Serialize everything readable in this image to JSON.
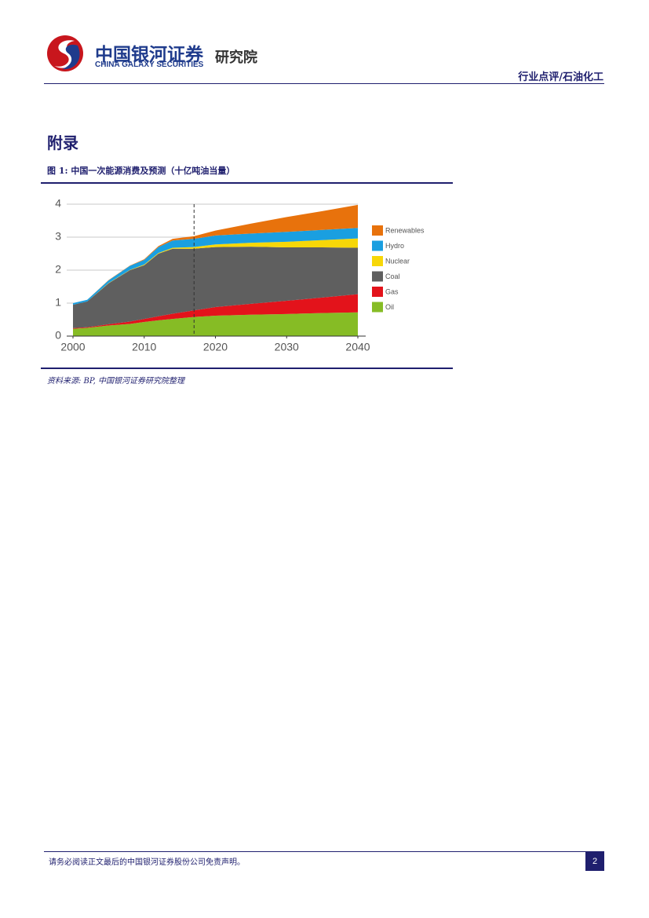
{
  "header": {
    "company_cn": "中国银河证券",
    "company_en": "CHINA GALAXY SECURITIES",
    "institute": "研究院",
    "category": "行业点评/石油化工"
  },
  "section_title": "附录",
  "figure_caption": "图 1: 中国一次能源消费及预测（十亿吨油当量）",
  "chart_data": {
    "type": "stacked_area",
    "x": [
      2000,
      2002,
      2005,
      2008,
      2010,
      2012,
      2014,
      2017,
      2020,
      2025,
      2030,
      2035,
      2040
    ],
    "series": [
      {
        "name": "Oil",
        "color": "#86bc25",
        "values": [
          0.22,
          0.25,
          0.32,
          0.37,
          0.43,
          0.48,
          0.52,
          0.58,
          0.62,
          0.65,
          0.67,
          0.7,
          0.72
        ]
      },
      {
        "name": "Gas",
        "color": "#e3131b",
        "values": [
          0.02,
          0.02,
          0.04,
          0.07,
          0.09,
          0.12,
          0.16,
          0.2,
          0.26,
          0.33,
          0.4,
          0.47,
          0.55
        ]
      },
      {
        "name": "Coal",
        "color": "#5f5f5f",
        "values": [
          0.71,
          0.78,
          1.24,
          1.56,
          1.63,
          1.9,
          1.97,
          1.87,
          1.82,
          1.73,
          1.62,
          1.52,
          1.41
        ]
      },
      {
        "name": "Nuclear",
        "color": "#f7d708",
        "values": [
          0.0,
          0.0,
          0.01,
          0.01,
          0.02,
          0.02,
          0.03,
          0.05,
          0.08,
          0.12,
          0.17,
          0.22,
          0.28
        ]
      },
      {
        "name": "Hydro",
        "color": "#1a9fe0",
        "values": [
          0.05,
          0.05,
          0.08,
          0.12,
          0.14,
          0.18,
          0.22,
          0.25,
          0.27,
          0.28,
          0.3,
          0.31,
          0.32
        ]
      },
      {
        "name": "Renewables",
        "color": "#e8720c",
        "values": [
          0.0,
          0.0,
          0.01,
          0.01,
          0.02,
          0.03,
          0.05,
          0.08,
          0.15,
          0.3,
          0.45,
          0.57,
          0.7
        ]
      }
    ],
    "xlim": [
      2000,
      2040
    ],
    "xticks": [
      2000,
      2010,
      2020,
      2030,
      2040
    ],
    "ylim": [
      0,
      4
    ],
    "yticks": [
      0,
      1,
      2,
      3,
      4
    ],
    "grid": true,
    "forecast_start": 2017,
    "legend": "right"
  },
  "source": "资料来源: BP, 中国银河证券研究院整理",
  "footer": {
    "disclaimer": "请务必阅读正文最后的中国银河证券股份公司免责声明。",
    "page": "2"
  }
}
